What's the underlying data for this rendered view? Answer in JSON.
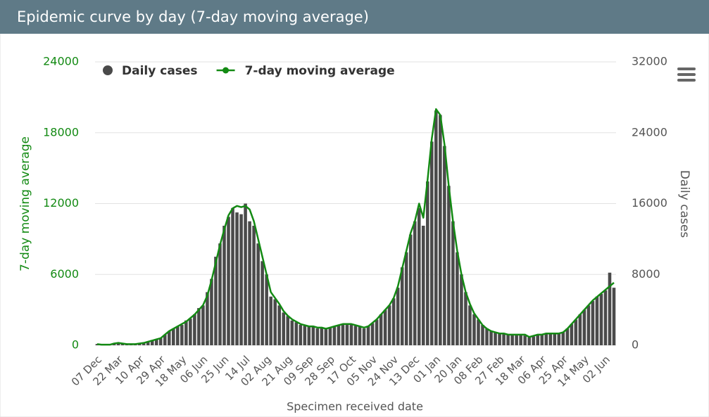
{
  "chart_data": {
    "type": "combo",
    "title": "Epidemic curve by day (7-day moving average)",
    "x_label": "Specimen received date",
    "y_label": "7-day moving average",
    "y2_label": "Daily cases",
    "categories": [
      "07 Dec",
      null,
      null,
      null,
      null,
      "22 Mar",
      null,
      null,
      null,
      null,
      "10 Apr",
      null,
      null,
      null,
      null,
      "29 Apr",
      null,
      null,
      null,
      null,
      "18 May",
      null,
      null,
      null,
      null,
      "06 Jun",
      null,
      null,
      null,
      null,
      "25 Jun",
      null,
      null,
      null,
      null,
      "14 Jul",
      null,
      null,
      null,
      null,
      "02 Aug",
      null,
      null,
      null,
      null,
      "21 Aug",
      null,
      null,
      null,
      null,
      "09 Sep",
      null,
      null,
      null,
      null,
      "28 Sep",
      null,
      null,
      null,
      null,
      "17 Oct",
      null,
      null,
      null,
      null,
      "05 Nov",
      null,
      null,
      null,
      null,
      "24 Nov",
      null,
      null,
      null,
      null,
      "13 Dec",
      null,
      null,
      null,
      null,
      "01 Jan",
      null,
      null,
      null,
      null,
      "20 Jan",
      null,
      null,
      null,
      null,
      "08 Feb",
      null,
      null,
      null,
      null,
      "27 Feb",
      null,
      null,
      null,
      null,
      "18 Mar",
      null,
      null,
      null,
      null,
      "06 Apr",
      null,
      null,
      null,
      null,
      "25 Apr",
      null,
      null,
      null,
      null,
      "14 May",
      null,
      null,
      null,
      null,
      "02 Jun",
      null,
      null
    ],
    "series": [
      {
        "name": "Daily cases",
        "type": "bar",
        "axis": "y2",
        "color": "#4a4a4a",
        "values": [
          150,
          50,
          50,
          50,
          200,
          300,
          200,
          150,
          100,
          150,
          200,
          300,
          400,
          600,
          700,
          800,
          1200,
          1600,
          1900,
          2100,
          2300,
          2800,
          3000,
          3500,
          4200,
          4500,
          6000,
          7500,
          10000,
          11500,
          13500,
          14500,
          15500,
          15000,
          14800,
          16000,
          14000,
          13500,
          11500,
          9500,
          8000,
          5500,
          5200,
          4500,
          3700,
          3300,
          2800,
          2600,
          2300,
          2200,
          2100,
          2100,
          1900,
          2000,
          1800,
          2000,
          2100,
          2300,
          2400,
          2300,
          2400,
          2200,
          2100,
          1900,
          2200,
          2500,
          2900,
          3500,
          4000,
          4500,
          5300,
          6500,
          8800,
          10500,
          12500,
          14000,
          15500,
          13500,
          18500,
          23000,
          26500,
          26000,
          22500,
          18000,
          14000,
          10500,
          8000,
          6000,
          4500,
          3500,
          2900,
          2300,
          1900,
          1600,
          1500,
          1400,
          1300,
          1200,
          1200,
          1200,
          1200,
          1100,
          900,
          1000,
          1200,
          1200,
          1300,
          1300,
          1300,
          1400,
          1500,
          1900,
          2400,
          2900,
          3500,
          4000,
          4500,
          5000,
          5500,
          5800,
          6200,
          8200,
          6500
        ]
      },
      {
        "name": "7-day moving average",
        "type": "line",
        "color": "#138a13",
        "values": [
          100,
          50,
          50,
          50,
          150,
          200,
          150,
          100,
          100,
          100,
          150,
          200,
          300,
          400,
          500,
          600,
          900,
          1200,
          1400,
          1600,
          1800,
          2000,
          2300,
          2600,
          3000,
          3400,
          4200,
          5500,
          7000,
          8500,
          9800,
          11000,
          11600,
          11800,
          11700,
          11800,
          11500,
          10500,
          9000,
          7500,
          6000,
          4500,
          4000,
          3500,
          2900,
          2500,
          2200,
          2000,
          1800,
          1700,
          1600,
          1600,
          1500,
          1500,
          1400,
          1500,
          1600,
          1700,
          1800,
          1800,
          1800,
          1700,
          1600,
          1500,
          1600,
          1900,
          2200,
          2600,
          3000,
          3400,
          4000,
          5000,
          6500,
          8000,
          9500,
          10500,
          12000,
          10800,
          14000,
          17500,
          20000,
          19500,
          17000,
          13500,
          10500,
          8000,
          6000,
          4500,
          3500,
          2700,
          2200,
          1700,
          1400,
          1200,
          1100,
          1000,
          1000,
          900,
          900,
          900,
          900,
          900,
          700,
          800,
          900,
          900,
          1000,
          1000,
          1000,
          1000,
          1100,
          1400,
          1800,
          2200,
          2600,
          3000,
          3400,
          3800,
          4100,
          4400,
          4700,
          5000,
          5300
        ]
      }
    ],
    "ylim": [
      0,
      24000
    ],
    "yticks": [
      0,
      6000,
      12000,
      18000,
      24000
    ],
    "y2lim": [
      0,
      32000
    ],
    "y2ticks": [
      0,
      8000,
      16000,
      24000,
      32000
    ],
    "grid": true,
    "legend": "top-left"
  }
}
